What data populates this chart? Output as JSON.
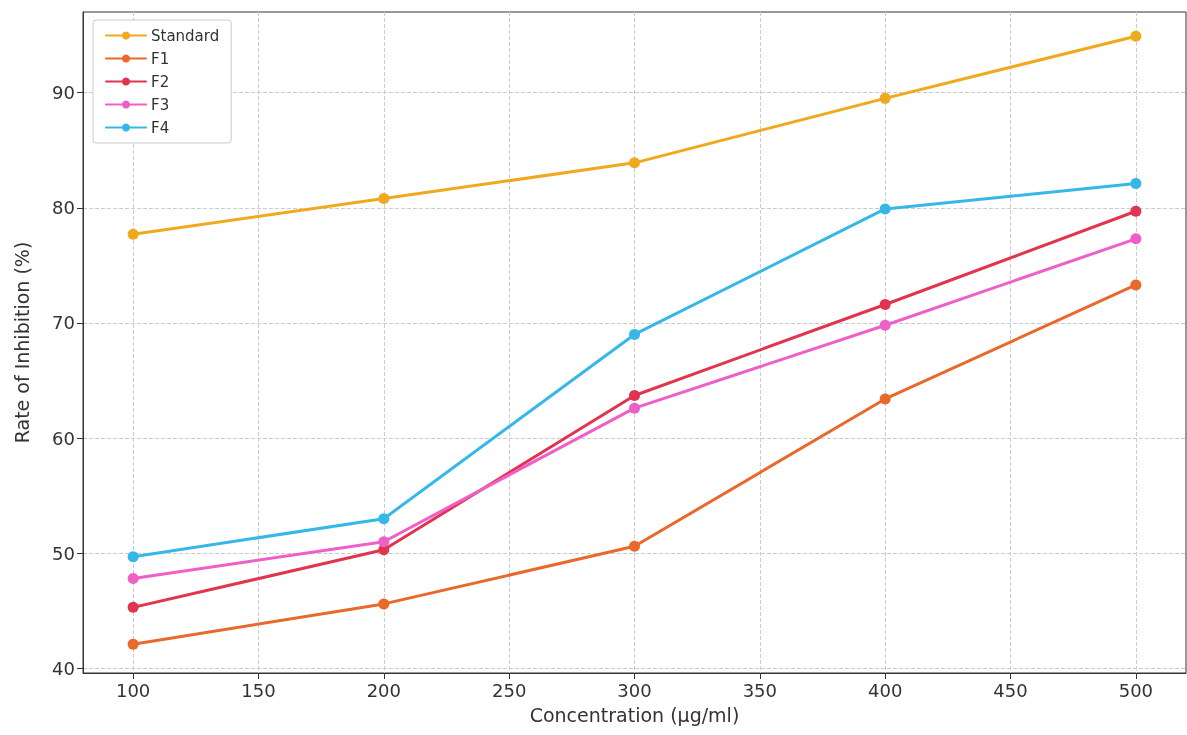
{
  "chart_data": {
    "type": "line",
    "xlabel": "Concentration (µg/ml)",
    "ylabel": "Rate of Inhibition (%)",
    "x": [
      100,
      200,
      300,
      400,
      500
    ],
    "series": [
      {
        "name": "Standard",
        "color": "#f0a91e",
        "values": [
          77.7,
          80.8,
          83.9,
          89.5,
          94.9
        ]
      },
      {
        "name": "F1",
        "color": "#e8692a",
        "values": [
          42.1,
          45.6,
          50.6,
          63.4,
          73.3
        ]
      },
      {
        "name": "F2",
        "color": "#e2344f",
        "values": [
          45.3,
          50.3,
          63.7,
          71.6,
          79.7
        ]
      },
      {
        "name": "F3",
        "color": "#ee5fc8",
        "values": [
          47.8,
          51.0,
          62.6,
          69.8,
          77.3
        ]
      },
      {
        "name": "F4",
        "color": "#35b8e8",
        "values": [
          49.7,
          53.0,
          69.0,
          79.9,
          82.1
        ]
      }
    ],
    "xlim": [
      80,
      520
    ],
    "xticks": [
      100,
      150,
      200,
      250,
      300,
      350,
      400,
      450,
      500
    ],
    "ylim": [
      39.6,
      97
    ],
    "yticks": [
      40,
      50,
      60,
      70,
      80,
      90
    ],
    "grid": true,
    "legend": "top left",
    "marker": "circle",
    "line_style": "solid"
  }
}
